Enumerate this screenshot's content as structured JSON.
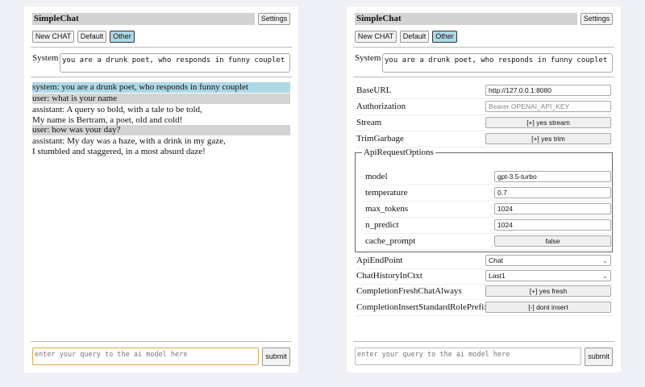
{
  "left": {
    "title": "SimpleChat",
    "settings": "Settings",
    "buttons": [
      "New CHAT",
      "Default",
      "Other"
    ],
    "system_label": "System",
    "system_value": "you are a drunk poet, who responds in funny couplet",
    "messages": [
      {
        "role": "system",
        "text": "system: you are a drunk poet, who responds in funny couplet"
      },
      {
        "role": "user",
        "text": "user: what is your name"
      },
      {
        "role": "assistant",
        "lines": [
          "assistant: A query so bold, with a tale to be told,",
          "My name is Bertram, a poet, old and cold!"
        ]
      },
      {
        "role": "user",
        "text": "user: how was your day?"
      },
      {
        "role": "assistant",
        "lines": [
          "assistant: My day was a haze, with a drink in my gaze,",
          "I stumbled and staggered, in a most absurd daze!"
        ]
      }
    ],
    "query_placeholder": "enter your query to the ai model here",
    "submit": "submit"
  },
  "right": {
    "title": "SimpleChat",
    "settings": "Settings",
    "buttons": [
      "New CHAT",
      "Default",
      "Other"
    ],
    "system_label": "System",
    "system_value": "you are a drunk poet, who responds in funny couplet",
    "base_url": {
      "label": "BaseURL",
      "value": "http://127.0.0.1:8080"
    },
    "authorization": {
      "label": "Authorization",
      "placeholder": "Bearer OPENAI_API_KEY"
    },
    "stream": {
      "label": "Stream",
      "value": "[+] yes stream"
    },
    "trim": {
      "label": "TrimGarbage",
      "value": "[+] yes trim"
    },
    "api_options": {
      "legend": "ApiRequestOptions",
      "model": {
        "label": "model",
        "value": "gpt-3.5-turbo"
      },
      "temperature": {
        "label": "temperature",
        "value": "0.7"
      },
      "max_tokens": {
        "label": "max_tokens",
        "value": "1024"
      },
      "n_predict": {
        "label": "n_predict",
        "value": "1024"
      },
      "cache_prompt": {
        "label": "cache_prompt",
        "value": "false"
      }
    },
    "endpoint": {
      "label": "ApiEndPoint",
      "value": "Chat"
    },
    "history": {
      "label": "ChatHistoryInCtxt",
      "value": "Last1"
    },
    "fresh": {
      "label": "CompletionFreshChatAlways",
      "value": "[+] yes fresh"
    },
    "prefix": {
      "label": "CompletionInsertStandardRolePrefix",
      "value": "[-] dont insert"
    },
    "query_placeholder": "enter your query to the ai model here",
    "submit": "submit"
  }
}
